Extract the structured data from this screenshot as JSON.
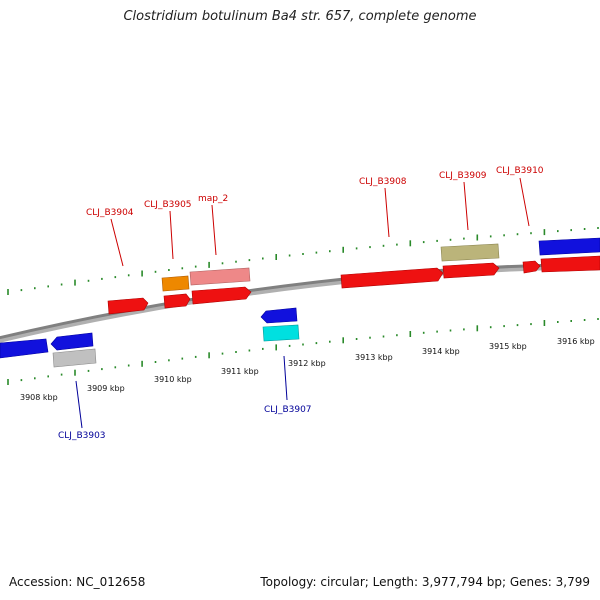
{
  "title": "Clostridium botulinum Ba4 str. 657, complete genome",
  "footer": {
    "accession": "Accession: NC_012658",
    "summary": "Topology: circular; Length: 3,977,794 bp; Genes: 3,799"
  },
  "colors": {
    "backbone": "#808080",
    "tick": "#2a8a2a",
    "label_forward": "#cc0000",
    "label_reverse": "#000099",
    "red": "#ee1111",
    "blue": "#1111dd",
    "orange": "#ee8800",
    "pink": "#ee8888",
    "olive": "#bbb47a",
    "cyan": "#00e0e0",
    "grey": "#c0c0c0"
  },
  "axis_labels": [
    "3908 kbp",
    "3909 kbp",
    "3910 kbp",
    "3911 kbp",
    "3912 kbp",
    "3913 kbp",
    "3914 kbp",
    "3915 kbp",
    "3916 kbp"
  ],
  "gene_labels": [
    {
      "text": "CLJ_B3904",
      "strand": "forward"
    },
    {
      "text": "CLJ_B3905",
      "strand": "forward"
    },
    {
      "text": "map_2",
      "strand": "forward"
    },
    {
      "text": "CLJ_B3908",
      "strand": "forward"
    },
    {
      "text": "CLJ_B3909",
      "strand": "forward"
    },
    {
      "text": "CLJ_B3910",
      "strand": "forward"
    },
    {
      "text": "CLJ_B3907",
      "strand": "reverse"
    },
    {
      "text": "CLJ_B3903",
      "strand": "reverse"
    }
  ]
}
